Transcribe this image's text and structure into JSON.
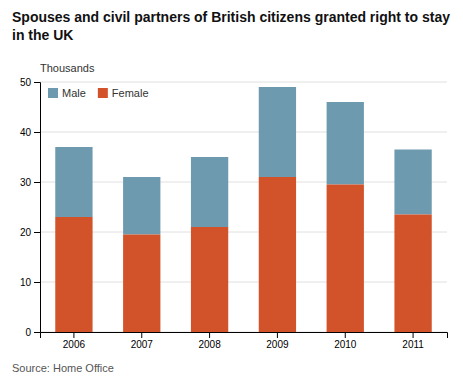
{
  "chart_data": {
    "type": "bar",
    "stacked": true,
    "title": "Spouses and civil partners of British citizens granted right to stay in the UK",
    "ylabel": "Thousands",
    "annotations": [
      "Source: Home Office"
    ],
    "categories": [
      "2006",
      "2007",
      "2008",
      "2009",
      "2010",
      "2011"
    ],
    "series": [
      {
        "name": "Male",
        "color": "#6e9ab0",
        "values": [
          14.0,
          11.5,
          14.0,
          18.0,
          16.5,
          13.0
        ]
      },
      {
        "name": "Female",
        "color": "#d2522a",
        "values": [
          23.0,
          19.5,
          21.0,
          31.0,
          29.5,
          23.5
        ]
      }
    ],
    "ylim": [
      0,
      50
    ],
    "yticks": [
      0,
      10,
      20,
      30,
      40,
      50
    ],
    "grid": true,
    "legend": "upper left"
  }
}
